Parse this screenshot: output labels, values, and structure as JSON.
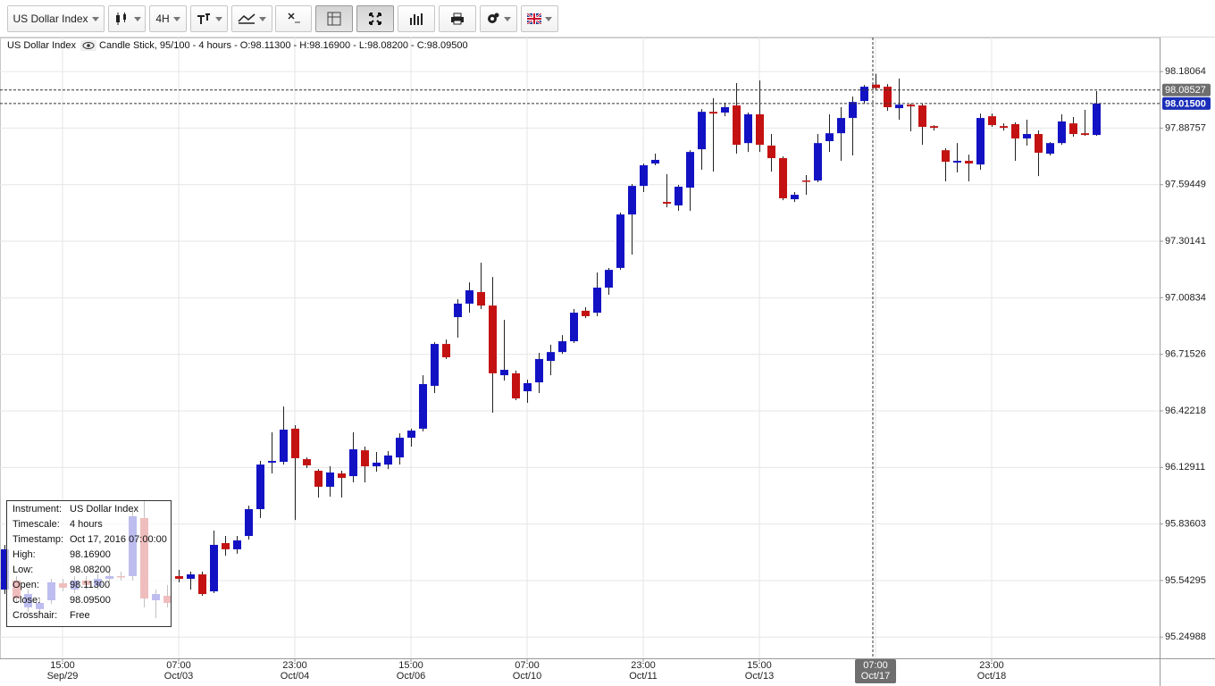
{
  "toolbar": {
    "instrument": "US Dollar Index",
    "timeframe": "4H"
  },
  "header": {
    "instrument": "US Dollar Index",
    "details": "Candle Stick, 95/100 - 4 hours - O:98.11300 - H:98.16900 - L:98.08200 - C:98.09500"
  },
  "info_box": {
    "rows": [
      [
        "Instrument:",
        "US Dollar Index"
      ],
      [
        "Timescale:",
        "4 hours"
      ],
      [
        "Timestamp:",
        "Oct 17, 2016 07:00:00"
      ],
      [
        "High:",
        "98.16900"
      ],
      [
        "Low:",
        "98.08200"
      ],
      [
        "Open:",
        "98.11300"
      ],
      [
        "Close:",
        "98.09500"
      ],
      [
        "Crosshair:",
        "Free"
      ]
    ]
  },
  "chart_data": {
    "type": "candlestick",
    "up_color": "#1212c4",
    "down_color": "#c41212",
    "grid": true,
    "categories": [
      null,
      null,
      null,
      null,
      null,
      "15:00\nSep/29",
      null,
      null,
      null,
      null,
      null,
      null,
      null,
      null,
      null,
      "07:00\nOct/03",
      null,
      null,
      null,
      null,
      null,
      null,
      null,
      null,
      null,
      "23:00\nOct/04",
      null,
      null,
      null,
      null,
      null,
      null,
      null,
      null,
      null,
      "15:00\nOct/06",
      null,
      null,
      null,
      null,
      null,
      null,
      null,
      null,
      null,
      "07:00\nOct/10",
      null,
      null,
      null,
      null,
      null,
      null,
      null,
      null,
      null,
      "23:00\nOct/11",
      null,
      null,
      null,
      null,
      null,
      null,
      null,
      null,
      null,
      "15:00\nOct/13",
      null,
      null,
      null,
      null,
      null,
      null,
      null,
      null,
      null,
      "07:00\nOct/17",
      null,
      null,
      null,
      null,
      null,
      null,
      null,
      null,
      null,
      "23:00\nOct/18",
      null,
      null,
      null,
      null,
      null,
      null,
      null,
      null,
      null
    ],
    "open": [
      95.496,
      95.543,
      95.404,
      95.395,
      95.441,
      95.529,
      95.496,
      95.543,
      95.515,
      95.552,
      95.566,
      95.566,
      95.867,
      95.441,
      95.464,
      95.566,
      95.552,
      95.575,
      95.487,
      95.737,
      95.705,
      95.774,
      95.913,
      96.154,
      96.158,
      96.33,
      96.172,
      96.112,
      96.029,
      96.098,
      96.084,
      96.218,
      96.135,
      96.144,
      96.181,
      96.283,
      96.33,
      96.552,
      96.769,
      96.908,
      96.978,
      97.038,
      96.968,
      96.607,
      96.617,
      96.524,
      96.57,
      96.681,
      96.727,
      96.783,
      96.941,
      96.931,
      97.061,
      97.163,
      97.44,
      97.588,
      97.704,
      97.505,
      97.487,
      97.579,
      97.778,
      97.972,
      97.968,
      98.005,
      97.81,
      97.959,
      97.797,
      97.732,
      97.519,
      97.616,
      97.616,
      97.82,
      97.861,
      97.94,
      98.028,
      98.113,
      98.102,
      97.991,
      98.009,
      98.005,
      97.898,
      97.773,
      97.709,
      97.718,
      97.699,
      97.949,
      97.898,
      97.908,
      97.834,
      97.857,
      97.755,
      97.81,
      97.912,
      97.861,
      97.852
    ],
    "high": [
      95.728,
      95.566,
      95.496,
      95.45,
      95.552,
      95.552,
      95.566,
      95.566,
      95.575,
      95.589,
      95.589,
      95.904,
      95.959,
      95.496,
      95.52,
      95.598,
      95.589,
      95.589,
      95.802,
      95.774,
      95.774,
      95.931,
      96.163,
      96.311,
      96.445,
      96.348,
      96.181,
      96.121,
      96.135,
      96.112,
      96.311,
      96.237,
      96.209,
      96.214,
      96.306,
      96.33,
      96.607,
      96.778,
      96.792,
      97.001,
      97.088,
      97.19,
      97.116,
      96.894,
      96.631,
      96.584,
      96.723,
      96.765,
      96.815,
      96.95,
      96.959,
      97.139,
      97.163,
      97.45,
      97.598,
      97.704,
      97.755,
      97.649,
      97.593,
      97.773,
      97.986,
      98.042,
      98.019,
      98.121,
      97.968,
      98.134,
      97.857,
      97.741,
      97.556,
      97.644,
      97.857,
      97.959,
      97.996,
      98.051,
      98.111,
      98.169,
      98.116,
      98.144,
      98.014,
      98.014,
      97.903,
      97.783,
      97.81,
      97.75,
      97.963,
      97.963,
      97.912,
      97.917,
      97.931,
      97.875,
      97.815,
      97.959,
      97.945,
      97.982,
      98.079
    ],
    "low": [
      95.473,
      95.427,
      95.381,
      95.367,
      95.422,
      95.487,
      95.478,
      95.496,
      95.496,
      95.534,
      95.543,
      95.543,
      95.404,
      95.348,
      95.404,
      95.534,
      95.496,
      95.464,
      95.478,
      95.672,
      95.682,
      95.755,
      95.867,
      96.098,
      96.144,
      95.857,
      96.126,
      95.973,
      95.978,
      95.973,
      96.052,
      96.052,
      96.107,
      96.121,
      96.144,
      96.237,
      96.316,
      96.515,
      96.691,
      96.802,
      96.931,
      96.95,
      96.413,
      96.579,
      96.478,
      96.464,
      96.515,
      96.607,
      96.718,
      96.774,
      96.903,
      96.913,
      97.024,
      97.153,
      97.232,
      97.556,
      97.695,
      97.477,
      97.459,
      97.459,
      97.672,
      97.662,
      97.949,
      97.755,
      97.764,
      97.764,
      97.662,
      97.514,
      97.505,
      97.542,
      97.607,
      97.764,
      97.718,
      97.746,
      98.014,
      98.082,
      97.977,
      97.931,
      97.871,
      97.801,
      97.875,
      97.612,
      97.658,
      97.612,
      97.672,
      97.894,
      97.875,
      97.718,
      97.797,
      97.639,
      97.746,
      97.801,
      97.843,
      97.848,
      97.848
    ],
    "close": [
      95.705,
      95.45,
      95.473,
      95.427,
      95.534,
      95.506,
      95.543,
      95.52,
      95.552,
      95.566,
      95.561,
      95.876,
      95.45,
      95.473,
      95.427,
      95.552,
      95.575,
      95.473,
      95.728,
      95.705,
      95.751,
      95.913,
      96.144,
      96.163,
      96.325,
      96.177,
      96.14,
      96.029,
      96.103,
      96.075,
      96.223,
      96.135,
      96.154,
      96.191,
      96.283,
      96.32,
      96.561,
      96.769,
      96.7,
      96.978,
      97.047,
      96.968,
      96.617,
      96.635,
      96.487,
      96.566,
      96.691,
      96.727,
      96.783,
      96.931,
      96.913,
      97.061,
      97.153,
      97.44,
      97.588,
      97.695,
      97.723,
      97.496,
      97.584,
      97.764,
      97.972,
      97.963,
      97.996,
      97.801,
      97.959,
      97.801,
      97.732,
      97.524,
      97.542,
      97.612,
      97.81,
      97.861,
      97.94,
      98.023,
      98.102,
      98.095,
      97.996,
      98.009,
      98.0,
      97.894,
      97.889,
      97.713,
      97.718,
      97.704,
      97.94,
      97.903,
      97.889,
      97.834,
      97.857,
      97.76,
      97.81,
      97.922,
      97.857,
      97.852,
      98.015
    ],
    "ylim": [
      95.14,
      98.357
    ],
    "yticks": [
      98.18064,
      97.88757,
      97.59449,
      97.30141,
      97.00834,
      96.71526,
      96.42218,
      96.12911,
      95.83603,
      95.54295,
      95.24988
    ],
    "crosshair_price": 98.08527,
    "last_price": {
      "value": 98.015,
      "label": "98.01500"
    },
    "crosshair_index": 75
  }
}
